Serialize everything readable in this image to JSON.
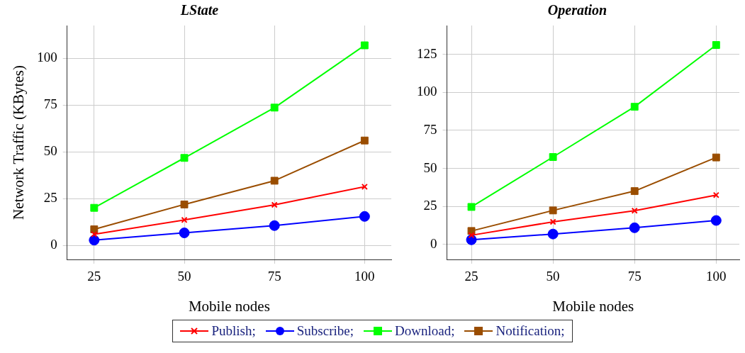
{
  "chart_data": [
    {
      "type": "line",
      "title": "LState",
      "xlabel": "Mobile nodes",
      "ylabel": "Network Traffic (KBytes)",
      "x": [
        25,
        50,
        75,
        100
      ],
      "xlim": [
        17.5,
        107.4
      ],
      "xticks": [
        25,
        50,
        75,
        100
      ],
      "ylim": [
        -7.5,
        117.6
      ],
      "yticks": [
        0,
        25,
        50,
        75,
        100
      ],
      "grid": true,
      "legend": "bottom",
      "series": [
        {
          "name": "Publish;",
          "color": "#ff0000",
          "marker": "cross",
          "values": [
            6,
            13.6,
            21.7,
            31.4
          ]
        },
        {
          "name": "Subscribe;",
          "color": "#0000ff",
          "marker": "circle",
          "values": [
            2.8,
            6.7,
            10.6,
            15.5
          ]
        },
        {
          "name": "Download;",
          "color": "#00ff00",
          "marker": "square",
          "values": [
            20.1,
            46.8,
            73.7,
            107
          ]
        },
        {
          "name": "Notification;",
          "color": "#9a4d00",
          "marker": "square",
          "values": [
            8.6,
            21.9,
            34.6,
            56.1
          ]
        }
      ]
    },
    {
      "type": "line",
      "title": "Operation",
      "xlabel": "Mobile nodes",
      "x": [
        25,
        50,
        75,
        100
      ],
      "xlim": [
        17.5,
        107.1
      ],
      "xticks": [
        25,
        50,
        75,
        100
      ],
      "ylim": [
        -9.8,
        143.9
      ],
      "yticks": [
        0,
        25,
        50,
        75,
        100,
        125
      ],
      "grid": true,
      "legend": "bottom",
      "series": [
        {
          "name": "Publish;",
          "color": "#ff0000",
          "marker": "cross",
          "values": [
            6.1,
            14.9,
            22.2,
            32.5
          ]
        },
        {
          "name": "Subscribe;",
          "color": "#0000ff",
          "marker": "circle",
          "values": [
            3.1,
            6.9,
            11,
            15.8
          ]
        },
        {
          "name": "Download;",
          "color": "#00ff00",
          "marker": "square",
          "values": [
            24.7,
            57.5,
            90.5,
            131.1
          ]
        },
        {
          "name": "Notification;",
          "color": "#9a4d00",
          "marker": "square",
          "values": [
            8.9,
            22.4,
            35.1,
            57.2
          ]
        }
      ]
    }
  ]
}
